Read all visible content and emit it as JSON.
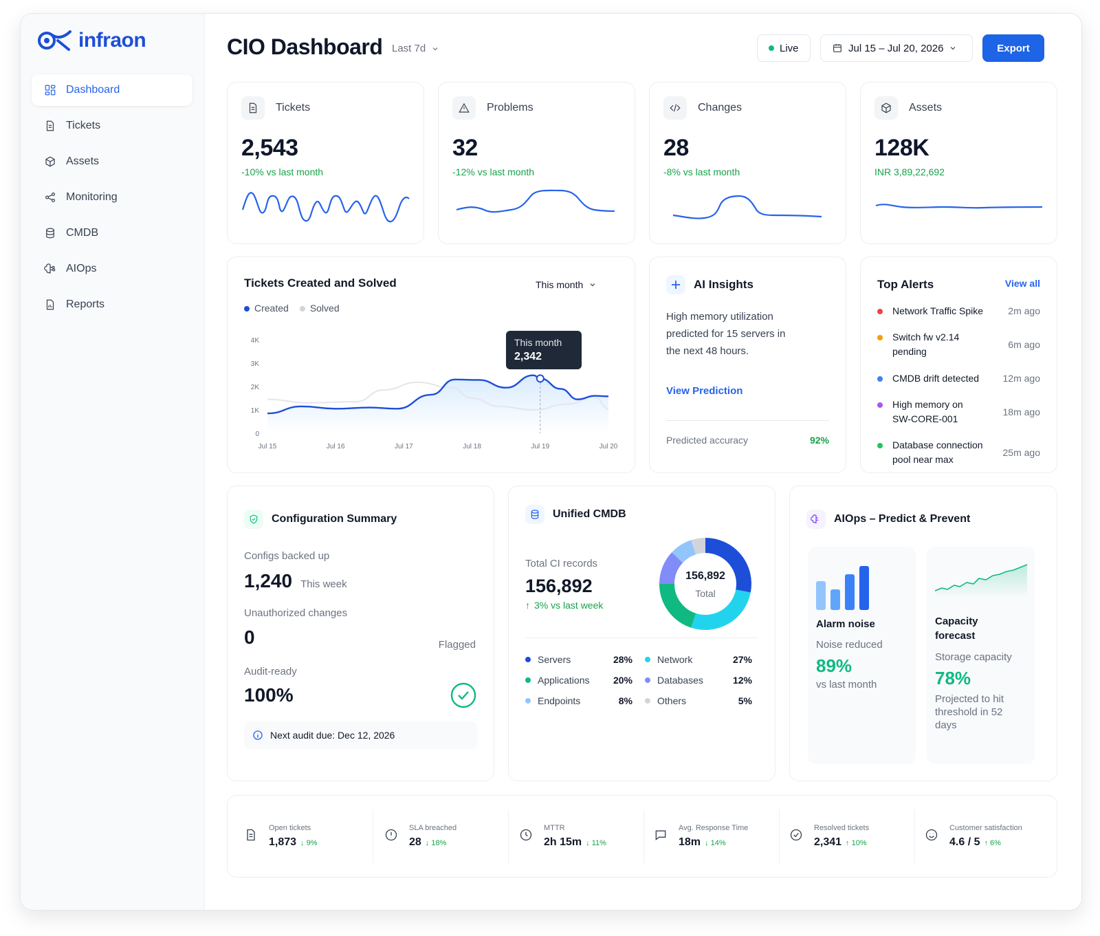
{
  "brand": {
    "name": "infraon",
    "color": "#1d4ed8"
  },
  "nav": [
    {
      "label": "Dashboard",
      "icon": "grid-icon",
      "active": true
    },
    {
      "label": "Tickets",
      "icon": "document-icon"
    },
    {
      "label": "Assets",
      "icon": "cube-icon"
    },
    {
      "label": "Monitoring",
      "icon": "share-nodes-icon"
    },
    {
      "label": "CMDB",
      "icon": "database-icon"
    },
    {
      "label": "AIOps",
      "icon": "brain-icon"
    },
    {
      "label": "Reports",
      "icon": "report-icon"
    }
  ],
  "header": {
    "title": "CIO Dashboard",
    "range": "Last 7d",
    "live": "Live",
    "date_range": "Jul 15 – Jul 20, 2026",
    "export": "Export"
  },
  "kpis": [
    {
      "label": "Tickets",
      "value": "2,543",
      "delta": "-10% vs last month",
      "icon": "document-icon"
    },
    {
      "label": "Problems",
      "value": "32",
      "delta": "-12% vs last month",
      "icon": "warning-icon"
    },
    {
      "label": "Changes",
      "value": "28",
      "delta": "-8% vs last month",
      "icon": "code-icon"
    },
    {
      "label": "Assets",
      "value": "128K",
      "delta": "INR 3,89,22,692",
      "icon": "cube-icon"
    }
  ],
  "tickets_chart": {
    "title": "Tickets Created and Solved",
    "period": "This month",
    "tooltip_title": "This month",
    "tooltip_value": "2,342"
  },
  "chart_data": {
    "type": "line",
    "title": "Tickets Created and Solved",
    "x": [
      "Jul 15",
      "Jul 16",
      "Jul 17",
      "Jul 18",
      "Jul 19",
      "Jul 20"
    ],
    "yticks": [
      "0",
      "1K",
      "2K",
      "3K",
      "4K"
    ],
    "ylim": [
      0,
      4000
    ],
    "legend": "top-left",
    "series": [
      {
        "name": "Created",
        "color": "#1d4ed8",
        "points": [
          [
            0,
            850
          ],
          [
            0.5,
            1150
          ],
          [
            1.0,
            1050
          ],
          [
            1.5,
            1100
          ],
          [
            1.9,
            1050
          ],
          [
            2.4,
            1650
          ],
          [
            2.75,
            2300
          ],
          [
            3.1,
            2280
          ],
          [
            3.5,
            1950
          ],
          [
            3.9,
            2480
          ],
          [
            4.0,
            2342
          ],
          [
            4.3,
            1900
          ],
          [
            4.55,
            1450
          ],
          [
            4.8,
            1600
          ],
          [
            5.0,
            1580
          ]
        ]
      },
      {
        "name": "Solved",
        "color": "#e5e7eb",
        "points": [
          [
            0,
            1450
          ],
          [
            0.6,
            1300
          ],
          [
            1.3,
            1350
          ],
          [
            1.7,
            1850
          ],
          [
            2.2,
            2180
          ],
          [
            2.7,
            1950
          ],
          [
            3.0,
            1500
          ],
          [
            3.4,
            1150
          ],
          [
            3.9,
            1000
          ],
          [
            4.4,
            1250
          ],
          [
            4.8,
            1550
          ],
          [
            5.0,
            1050
          ]
        ]
      }
    ]
  },
  "insights": {
    "title": "AI Insights",
    "text": "High memory utilization predicted for 15 servers in the next 48 hours.",
    "link": "View Prediction",
    "accuracy_label": "Predicted accuracy",
    "accuracy": "92%"
  },
  "alerts": {
    "title": "Top Alerts",
    "view_all": "View all",
    "items": [
      {
        "text": "Network Traffic Spike",
        "ago": "2m ago",
        "color": "#ef4444"
      },
      {
        "text": "Switch fw v2.14 pending",
        "ago": "6m ago",
        "color": "#f59e0b"
      },
      {
        "text": "CMDB drift detected",
        "ago": "12m ago",
        "color": "#3b82f6"
      },
      {
        "text": "High memory on SW-CORE-001",
        "ago": "18m ago",
        "color": "#a855f7"
      },
      {
        "text": "Database connection pool near max",
        "ago": "25m ago",
        "color": "#22c55e"
      }
    ]
  },
  "config": {
    "title": "Configuration Summary",
    "backed_label": "Configs backed up",
    "backed_value": "1,240",
    "backed_sub": "This week",
    "unauth_label": "Unauthorized changes",
    "unauth_value": "0",
    "unauth_sub": "Flagged",
    "audit_label": "Audit-ready",
    "audit_value": "100%",
    "next_audit": "Next audit due: Dec 12, 2026"
  },
  "cmdb": {
    "title": "Unified CMDB",
    "total_label": "Total CI records",
    "total": "156,892",
    "delta": "3% vs last week",
    "donut_value": "156,892",
    "donut_label": "Total",
    "segments": [
      {
        "label": "Servers",
        "pct": "28%",
        "value": 28,
        "color": "#1d4ed8"
      },
      {
        "label": "Network",
        "pct": "27%",
        "value": 27,
        "color": "#22d3ee"
      },
      {
        "label": "Applications",
        "pct": "20%",
        "value": 20,
        "color": "#10b981"
      },
      {
        "label": "Databases",
        "pct": "12%",
        "value": 12,
        "color": "#818cf8"
      },
      {
        "label": "Endpoints",
        "pct": "8%",
        "value": 8,
        "color": "#93c5fd"
      },
      {
        "label": "Others",
        "pct": "5%",
        "value": 5,
        "color": "#d1d5db"
      }
    ]
  },
  "aiops": {
    "title": "AIOps – Predict & Prevent",
    "alarm": {
      "title": "Alarm noise",
      "label": "Noise reduced",
      "value": "89%",
      "sub": "vs last month"
    },
    "capacity": {
      "title": "Capacity forecast",
      "label": "Storage capacity",
      "value": "78%",
      "sub": "Projected to hit threshold in 52 days"
    }
  },
  "stats": [
    {
      "label": "Open tickets",
      "value": "1,873",
      "delta": "↓ 9%",
      "icon": "document-icon"
    },
    {
      "label": "SLA breached",
      "value": "28",
      "delta": "↓ 18%",
      "icon": "alert-circle-icon"
    },
    {
      "label": "MTTR",
      "value": "2h 15m",
      "delta": "↓ 11%",
      "icon": "clock-icon"
    },
    {
      "label": "Avg. Response Time",
      "value": "18m",
      "delta": "↓ 14%",
      "icon": "chat-icon"
    },
    {
      "label": "Resolved tickets",
      "value": "2,341",
      "delta": "↑ 10%",
      "icon": "check-circle-icon"
    },
    {
      "label": "Customer satisfaction",
      "value": "4.6 / 5",
      "delta": "↑ 6%",
      "icon": "smile-icon"
    }
  ]
}
